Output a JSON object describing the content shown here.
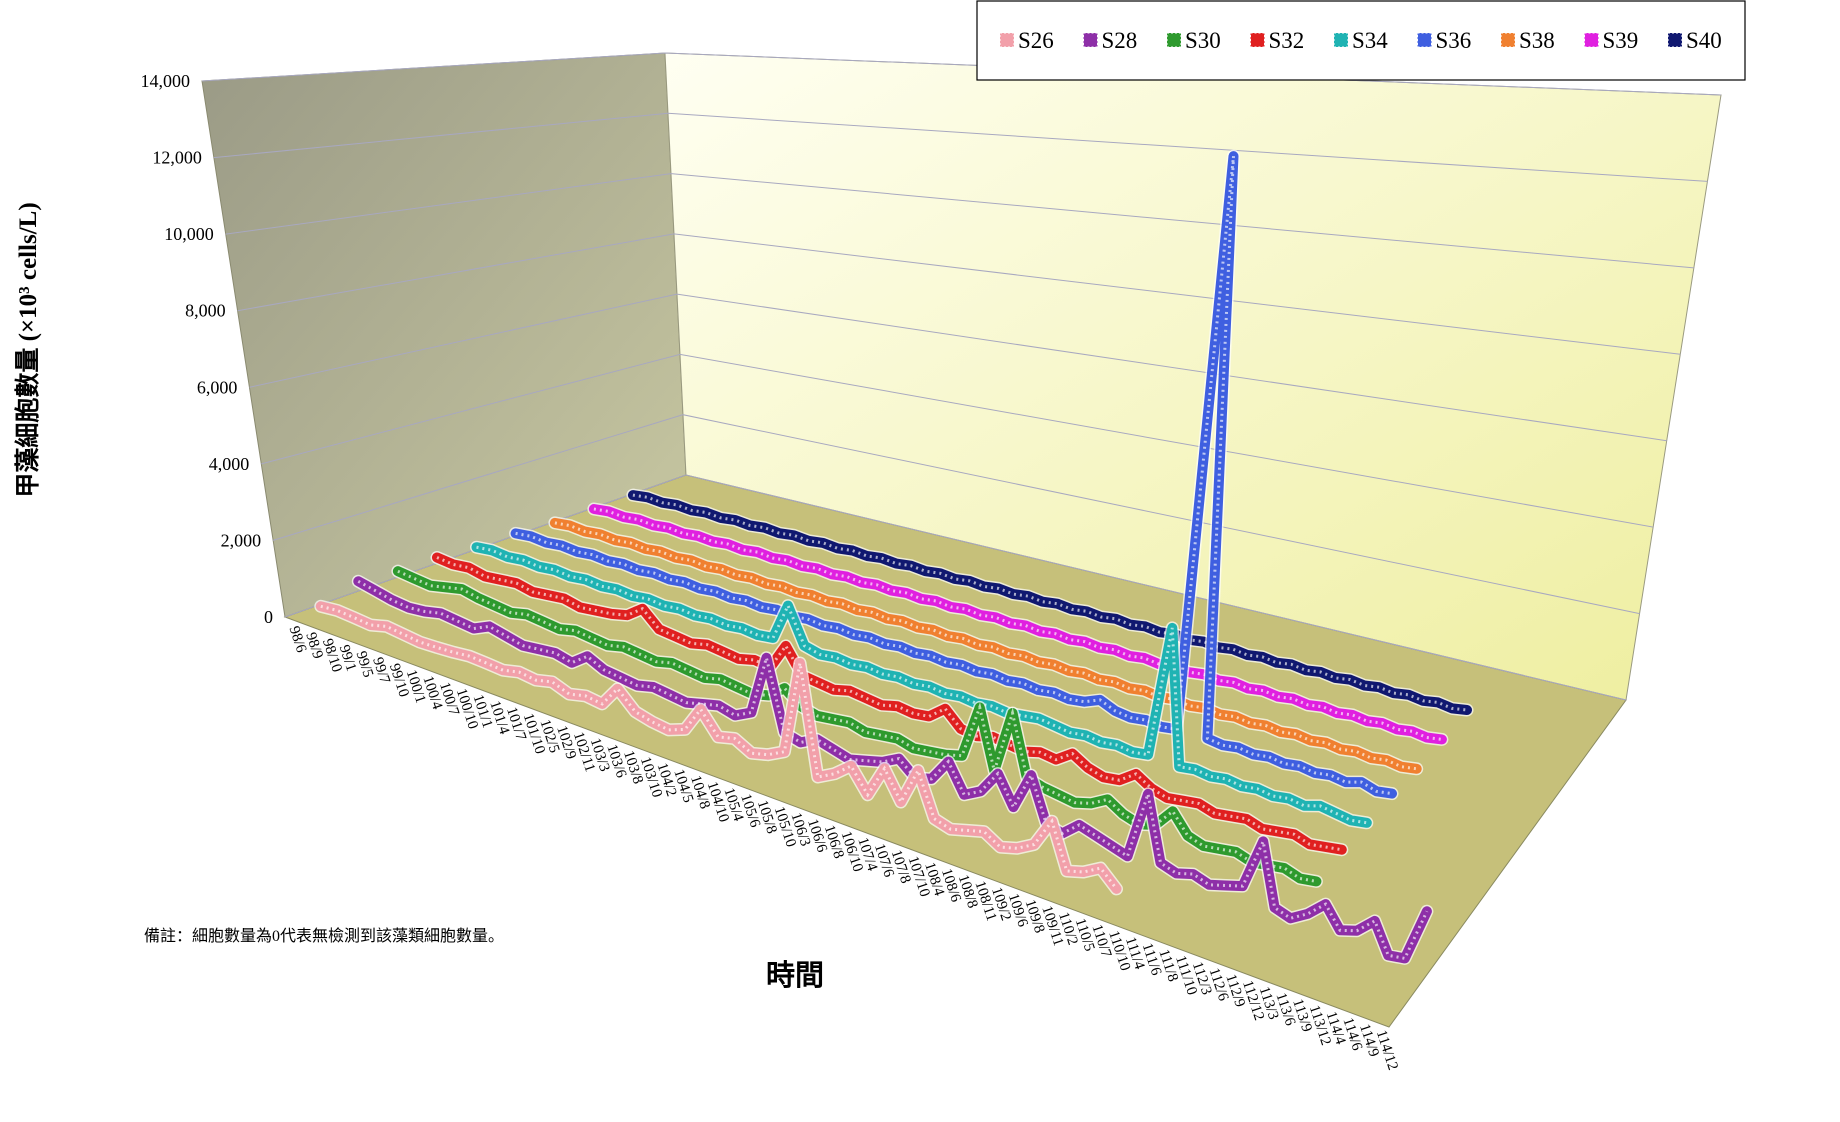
{
  "chart_data": {
    "type": "ribbon3d",
    "y_axis_title": "甲藻細胞數量 (×10³ cells/L)",
    "x_axis_title": "時間",
    "note": "備註：細胞數量為0代表無檢測到該藻類細胞數量。",
    "ylim": [
      0,
      14000
    ],
    "yticks": [
      0,
      {
        "value": 2000,
        "label": "2,000"
      },
      {
        "value": 4000,
        "label": "4,000"
      },
      {
        "value": 6000,
        "label": "6,000"
      },
      {
        "value": 8000,
        "label": "8,000"
      },
      {
        "value": 10000,
        "label": "10,000"
      },
      {
        "value": 12000,
        "label": "12,000"
      },
      {
        "value": 14000,
        "label": "14,000"
      }
    ],
    "grid": true,
    "legend": "top-right",
    "categories": [
      "98/6",
      "98/9",
      "98/10",
      "99/1",
      "99/5",
      "99/7",
      "99/10",
      "100/1",
      "100/4",
      "100/7",
      "100/10",
      "101/1",
      "101/4",
      "101/7",
      "101/10",
      "102/5",
      "102/9",
      "102/11",
      "103/3",
      "103/6",
      "103/8",
      "103/10",
      "104/2",
      "104/5",
      "104/8",
      "104/10",
      "105/4",
      "105/6",
      "105/8",
      "105/10",
      "106/3",
      "106/6",
      "106/8",
      "106/10",
      "107/4",
      "107/6",
      "107/8",
      "107/10",
      "108/4",
      "108/6",
      "108/8",
      "108/11",
      "109/2",
      "109/6",
      "109/8",
      "109/11",
      "110/2",
      "110/5",
      "110/7",
      "110/10",
      "111/4",
      "111/6",
      "111/8",
      "111/10",
      "112/3",
      "112/6",
      "112/9",
      "112/12",
      "113/3",
      "113/6",
      "113/9",
      "113/12",
      "114/4",
      "114/6",
      "114/9",
      "114/12"
    ],
    "series": [
      {
        "name": "S26",
        "color": "#f2a0aa",
        "values": [
          100,
          150,
          120,
          80,
          200,
          150,
          100,
          120,
          150,
          200,
          180,
          150,
          250,
          200,
          300,
          150,
          250,
          200,
          700,
          300,
          200,
          150,
          300,
          900,
          400,
          500,
          300,
          400,
          600,
          2700,
          300,
          500,
          800,
          300,
          1000,
          400,
          1200,
          300,
          200,
          300,
          400,
          200,
          300,
          500,
          1100,
          200,
          300,
          500,
          200,
          null,
          null,
          null,
          null,
          null,
          null,
          null,
          null,
          null,
          null,
          null,
          null,
          null,
          null,
          null,
          null,
          null
        ]
      },
      {
        "name": "S28",
        "color": "#8e2fa8",
        "values": [
          400,
          300,
          200,
          150,
          200,
          300,
          250,
          200,
          400,
          300,
          200,
          250,
          300,
          200,
          500,
          300,
          250,
          200,
          300,
          250,
          200,
          300,
          400,
          300,
          500,
          1900,
          300,
          200,
          400,
          300,
          200,
          300,
          400,
          600,
          300,
          400,
          900,
          300,
          500,
          1000,
          400,
          1200,
          300,
          200,
          500,
          400,
          300,
          200,
          1600,
          300,
          200,
          300,
          200,
          300,
          400,
          1400,
          200,
          100,
          300,
          600,
          200,
          300,
          600,
          50,
          100,
          1100
        ]
      },
      {
        "name": "S30",
        "color": "#2e9a2e",
        "values": [
          300,
          250,
          200,
          300,
          400,
          300,
          250,
          200,
          300,
          250,
          200,
          300,
          250,
          200,
          300,
          250,
          200,
          300,
          250,
          200,
          300,
          250,
          200,
          300,
          600,
          300,
          200,
          250,
          300,
          200,
          250,
          300,
          200,
          250,
          300,
          400,
          1600,
          300,
          1700,
          400,
          300,
          250,
          200,
          300,
          500,
          300,
          200,
          300,
          700,
          300,
          200,
          250,
          300,
          200,
          250,
          300,
          200,
          250,
          null,
          null,
          null,
          null,
          null,
          null,
          null,
          null
        ]
      },
      {
        "name": "S32",
        "color": "#e02020",
        "values": [
          300,
          250,
          300,
          200,
          250,
          300,
          200,
          250,
          300,
          200,
          250,
          300,
          400,
          700,
          300,
          250,
          200,
          300,
          250,
          200,
          300,
          250,
          900,
          300,
          250,
          200,
          300,
          250,
          200,
          300,
          250,
          300,
          600,
          250,
          200,
          300,
          250,
          200,
          300,
          250,
          500,
          300,
          200,
          250,
          500,
          300,
          200,
          250,
          300,
          200,
          250,
          300,
          200,
          250,
          300,
          200,
          250,
          300,
          null,
          null,
          null,
          null,
          null,
          null,
          null,
          null
        ]
      },
      {
        "name": "S34",
        "color": "#1fb3b3",
        "values": [
          200,
          250,
          200,
          250,
          200,
          250,
          200,
          250,
          200,
          250,
          200,
          250,
          200,
          250,
          200,
          250,
          200,
          250,
          200,
          250,
          1200,
          300,
          200,
          250,
          200,
          250,
          200,
          250,
          200,
          250,
          200,
          250,
          200,
          250,
          200,
          250,
          300,
          250,
          200,
          250,
          200,
          250,
          200,
          250,
          3200,
          200,
          250,
          200,
          250,
          200,
          250,
          200,
          250,
          200,
          300,
          250,
          200,
          250,
          null,
          null,
          null,
          null,
          null,
          null,
          null,
          null
        ]
      },
      {
        "name": "S36",
        "color": "#3f5fe0",
        "values": [
          200,
          250,
          200,
          250,
          200,
          250,
          200,
          250,
          200,
          250,
          200,
          250,
          200,
          250,
          200,
          250,
          200,
          250,
          200,
          250,
          200,
          250,
          200,
          250,
          200,
          250,
          200,
          250,
          200,
          250,
          200,
          250,
          200,
          250,
          200,
          250,
          200,
          250,
          400,
          250,
          200,
          250,
          200,
          250,
          13500,
          250,
          200,
          250,
          200,
          250,
          200,
          250,
          200,
          250,
          200,
          300,
          200,
          250,
          null,
          null,
          null,
          null,
          null,
          null,
          null,
          null
        ]
      },
      {
        "name": "S38",
        "color": "#f08030",
        "values": [
          100,
          150,
          100,
          150,
          100,
          150,
          100,
          150,
          100,
          150,
          100,
          150,
          100,
          150,
          100,
          150,
          100,
          150,
          100,
          150,
          100,
          150,
          100,
          150,
          100,
          150,
          100,
          150,
          100,
          150,
          100,
          150,
          100,
          150,
          100,
          150,
          100,
          150,
          100,
          150,
          100,
          150,
          100,
          150,
          100,
          150,
          100,
          150,
          100,
          150,
          100,
          150,
          100,
          150,
          100,
          150,
          100,
          150,
          null,
          null,
          null,
          null,
          null,
          null,
          null,
          null
        ]
      },
      {
        "name": "S39",
        "color": "#e020e0",
        "values": [
          100,
          150,
          100,
          150,
          100,
          150,
          100,
          150,
          100,
          150,
          100,
          150,
          100,
          150,
          100,
          150,
          100,
          150,
          100,
          150,
          100,
          150,
          100,
          150,
          100,
          150,
          100,
          150,
          100,
          150,
          100,
          150,
          100,
          150,
          100,
          150,
          100,
          150,
          100,
          150,
          100,
          150,
          100,
          150,
          100,
          150,
          100,
          150,
          100,
          150,
          100,
          150,
          100,
          150,
          100,
          150,
          100,
          150,
          null,
          null,
          null,
          null,
          null,
          null,
          null,
          null
        ]
      },
      {
        "name": "S40",
        "color": "#101870",
        "values": [
          100,
          150,
          100,
          150,
          100,
          150,
          100,
          150,
          100,
          150,
          100,
          150,
          100,
          150,
          100,
          150,
          100,
          150,
          100,
          150,
          100,
          150,
          100,
          150,
          100,
          150,
          100,
          150,
          100,
          150,
          100,
          150,
          100,
          150,
          100,
          150,
          100,
          150,
          100,
          150,
          100,
          150,
          100,
          150,
          100,
          150,
          100,
          150,
          100,
          150,
          100,
          150,
          100,
          150,
          100,
          150,
          100,
          150,
          null,
          null,
          null,
          null,
          null,
          null,
          null,
          null
        ]
      }
    ]
  }
}
